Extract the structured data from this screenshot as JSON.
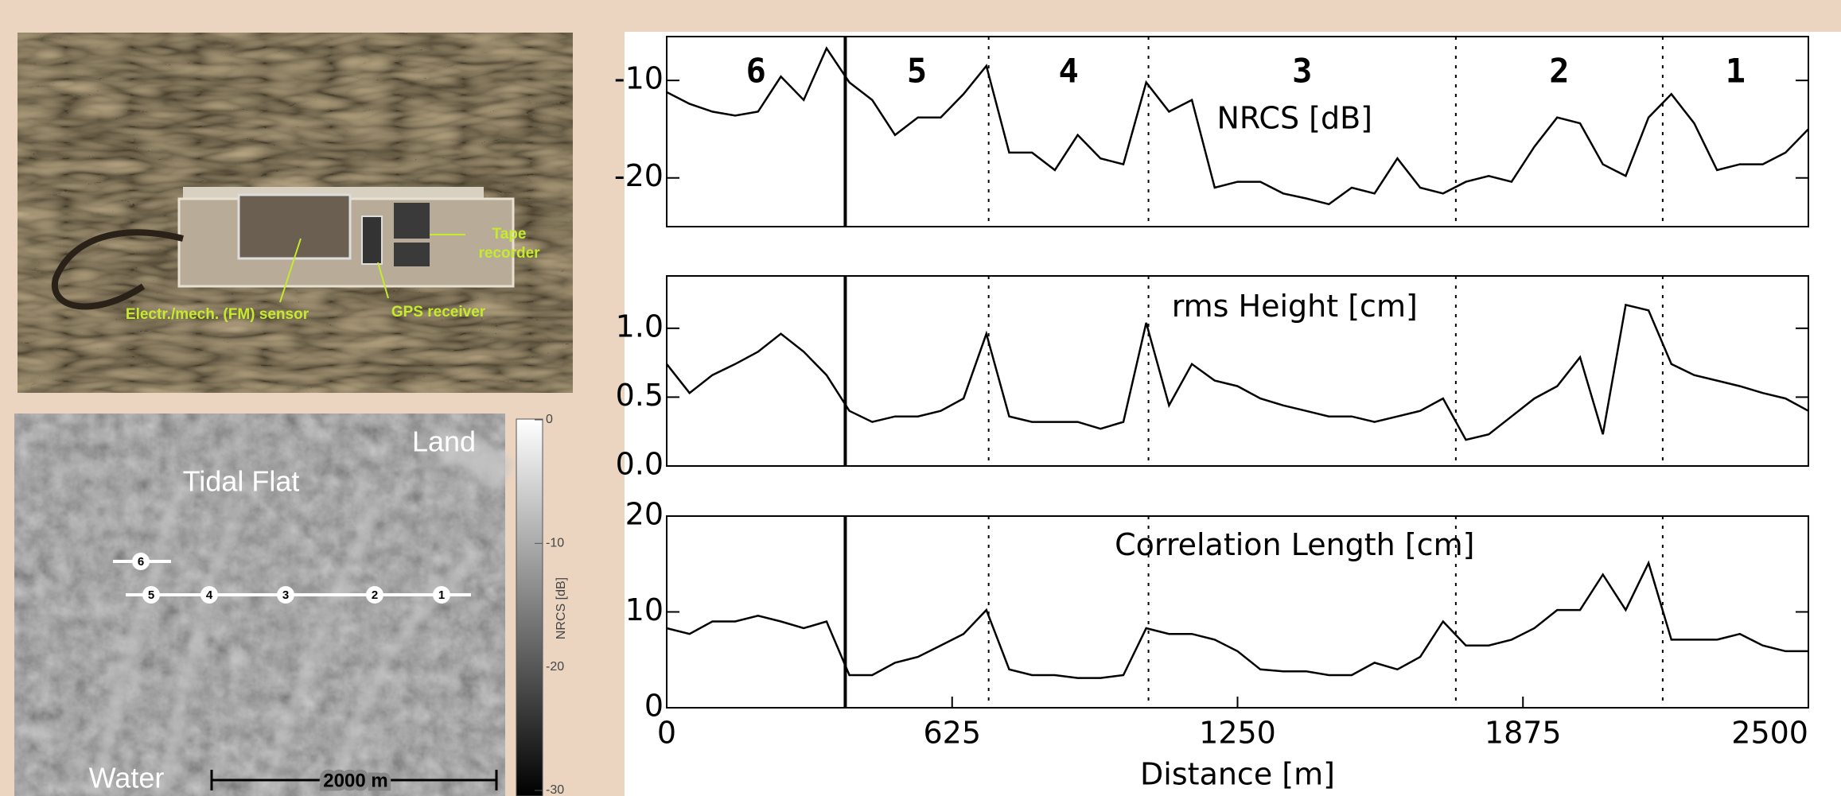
{
  "photo": {
    "labels": {
      "tape": [
        "Tape",
        "recorder"
      ],
      "sensor": "Electr./mech. (FM) sensor",
      "gps": "GPS receiver"
    }
  },
  "sar_image": {
    "labels": {
      "land": "Land",
      "tidal_flat": "Tidal Flat",
      "water": "Water",
      "scale": "2000 m"
    },
    "markers": [
      "6",
      "5",
      "4",
      "3",
      "2",
      "1"
    ],
    "colorbar": {
      "label": "NRCS [dB]",
      "lim": [
        -30,
        0
      ],
      "ticks": [
        0,
        -10,
        -20,
        -30
      ]
    }
  },
  "chart_data": [
    {
      "type": "line",
      "annotation": "NRCS [dB]",
      "color": "#000000",
      "sections": [
        "6",
        "5",
        "4",
        "3",
        "2",
        "1"
      ],
      "dividers": [
        391,
        705,
        1055,
        1728,
        2181
      ],
      "x": [
        0,
        50,
        100,
        150,
        200,
        250,
        300,
        350,
        400,
        450,
        500,
        550,
        600,
        650,
        700,
        750,
        800,
        850,
        900,
        950,
        1000,
        1050,
        1100,
        1150,
        1200,
        1250,
        1300,
        1350,
        1400,
        1450,
        1500,
        1550,
        1600,
        1650,
        1700,
        1750,
        1800,
        1850,
        1900,
        1950,
        2000,
        2050,
        2100,
        2150,
        2200,
        2250,
        2300,
        2350,
        2400,
        2450,
        2500
      ],
      "values": [
        -11.2,
        -12.4,
        -13.2,
        -13.6,
        -13.2,
        -9.6,
        -12,
        -6.7,
        -10.2,
        -12,
        -15.6,
        -13.8,
        -13.8,
        -11.4,
        -8.5,
        -17.4,
        -17.4,
        -19.2,
        -15.6,
        -18,
        -18.6,
        -10.2,
        -13.2,
        -12,
        -21,
        -20.4,
        -20.4,
        -21.6,
        -22.1,
        -22.7,
        -21,
        -21.6,
        -18,
        -21,
        -21.6,
        -20.4,
        -19.8,
        -20.4,
        -16.8,
        -13.8,
        -14.4,
        -18.6,
        -19.8,
        -13.8,
        -11.4,
        -14.4,
        -19.2,
        -18.6,
        -18.6,
        -17.4,
        -15
      ],
      "xlim": [
        0,
        2500
      ],
      "ylim": [
        -25,
        -5.5
      ],
      "yticks": [
        -10,
        -20
      ]
    },
    {
      "type": "line",
      "annotation": "rms Height [cm]",
      "color": "#000000",
      "dividers": [
        391,
        705,
        1055,
        1728,
        2181
      ],
      "x": [
        0,
        50,
        100,
        150,
        200,
        250,
        300,
        350,
        400,
        450,
        500,
        550,
        600,
        650,
        700,
        750,
        800,
        850,
        900,
        950,
        1000,
        1050,
        1100,
        1150,
        1200,
        1250,
        1300,
        1350,
        1400,
        1450,
        1500,
        1550,
        1600,
        1650,
        1700,
        1750,
        1800,
        1850,
        1900,
        1950,
        2000,
        2050,
        2100,
        2150,
        2200,
        2250,
        2300,
        2350,
        2400,
        2450,
        2500
      ],
      "values": [
        0.74,
        0.53,
        0.66,
        0.74,
        0.83,
        0.96,
        0.83,
        0.66,
        0.4,
        0.32,
        0.36,
        0.36,
        0.4,
        0.49,
        0.96,
        0.36,
        0.32,
        0.32,
        0.32,
        0.27,
        0.32,
        1.04,
        0.44,
        0.74,
        0.62,
        0.58,
        0.49,
        0.44,
        0.4,
        0.36,
        0.36,
        0.32,
        0.36,
        0.4,
        0.49,
        0.19,
        0.23,
        0.36,
        0.49,
        0.58,
        0.79,
        0.23,
        1.17,
        1.13,
        0.74,
        0.66,
        0.62,
        0.58,
        0.53,
        0.49,
        0.4
      ],
      "xlim": [
        0,
        2500
      ],
      "ylim": [
        0,
        1.38
      ],
      "yticks": [
        {
          "value": 0,
          "label": "0.0"
        },
        0.5,
        {
          "value": 1,
          "label": "1.0"
        }
      ]
    },
    {
      "type": "line",
      "annotation": "Correlation Length [cm]",
      "color": "#000000",
      "dividers": [
        391,
        705,
        1055,
        1728,
        2181
      ],
      "x": [
        0,
        50,
        100,
        150,
        200,
        250,
        300,
        350,
        400,
        450,
        500,
        550,
        600,
        650,
        700,
        750,
        800,
        850,
        900,
        950,
        1000,
        1050,
        1100,
        1150,
        1200,
        1250,
        1300,
        1350,
        1400,
        1450,
        1500,
        1550,
        1600,
        1650,
        1700,
        1750,
        1800,
        1850,
        1900,
        1950,
        2000,
        2050,
        2100,
        2150,
        2200,
        2250,
        2300,
        2350,
        2400,
        2450,
        2500
      ],
      "values": [
        8.3,
        7.7,
        9,
        9,
        9.6,
        9,
        8.3,
        9,
        3.4,
        3.4,
        4.7,
        5.3,
        6.5,
        7.7,
        10.2,
        4,
        3.4,
        3.4,
        3.1,
        3.1,
        3.4,
        8.3,
        7.7,
        7.7,
        7.1,
        5.9,
        4,
        3.8,
        3.8,
        3.4,
        3.4,
        4.7,
        4,
        5.3,
        9,
        6.5,
        6.5,
        7.1,
        8.3,
        10.2,
        10.2,
        13.9,
        10.2,
        15.1,
        7.1,
        7.1,
        7.1,
        7.7,
        6.5,
        5.9,
        5.9
      ],
      "xlim": [
        0,
        2500
      ],
      "ylim": [
        0,
        20
      ],
      "yticks": [
        0,
        10,
        20
      ],
      "xticks": [
        0,
        625,
        1250,
        1875,
        2500
      ],
      "xlabel": "Distance [m]"
    }
  ]
}
